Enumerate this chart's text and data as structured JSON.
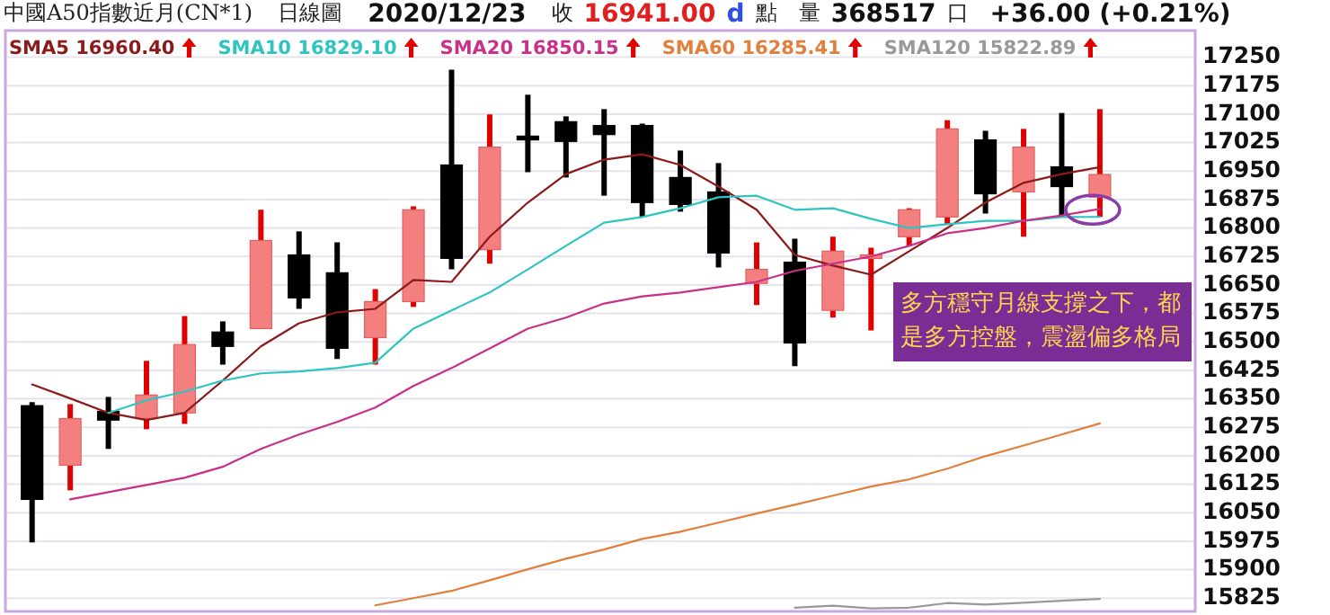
{
  "chart_data": {
    "type": "candlestick",
    "title": "中國A50指數近月(CN*1)",
    "subtitle": "日線圖",
    "annotations": [
      "2020/12/23",
      "收",
      "16941.00",
      "d",
      "點",
      "量",
      "368517",
      "口",
      "+36.00 (+0.21%)",
      "多方穩守月線支撐之下，都是多方控盤，震盪偏多格局"
    ],
    "categories": [
      null,
      null,
      null,
      null,
      null,
      null,
      null,
      null,
      null,
      null,
      null,
      null,
      null,
      null,
      null,
      null,
      null,
      null,
      null,
      null,
      null,
      null,
      null,
      null,
      null,
      null,
      null,
      null,
      null
    ],
    "ohlc": [
      [
        16332,
        16341,
        15972,
        16085
      ],
      [
        16175,
        16336,
        16109,
        16298
      ],
      [
        16317,
        16355,
        16218,
        16294
      ],
      [
        16298,
        16450,
        16270,
        16360
      ],
      [
        16313,
        16568,
        16284,
        16493
      ],
      [
        16526,
        16554,
        16440,
        16488
      ],
      [
        16535,
        16848,
        16535,
        16767
      ],
      [
        16729,
        16791,
        16587,
        16616
      ],
      [
        16682,
        16762,
        16455,
        16483
      ],
      [
        16511,
        16639,
        16440,
        16606
      ],
      [
        16606,
        16857,
        16592,
        16848
      ],
      [
        16966,
        17217,
        16691,
        16720
      ],
      [
        16743,
        17099,
        16706,
        17013
      ],
      [
        17042,
        17151,
        16947,
        17032
      ],
      [
        17080,
        17094,
        16933,
        17028
      ],
      [
        17070,
        17113,
        16885,
        17046
      ],
      [
        17070,
        17075,
        16829,
        16867
      ],
      [
        16933,
        17004,
        16843,
        16862
      ],
      [
        16895,
        16971,
        16696,
        16734
      ],
      [
        16654,
        16762,
        16597,
        16691
      ],
      [
        16710,
        16772,
        16436,
        16497
      ],
      [
        16583,
        16777,
        16564,
        16739
      ],
      [
        16720,
        16748,
        16530,
        16729
      ],
      [
        16777,
        16852,
        16753,
        16848
      ],
      [
        16829,
        17084,
        16810,
        17061
      ],
      [
        17032,
        17056,
        16838,
        16890
      ],
      [
        16895,
        17061,
        16777,
        17013
      ],
      [
        16961,
        17103,
        16829,
        16909
      ],
      [
        16881,
        17113,
        16829,
        16941
      ]
    ],
    "series": [
      {
        "name": "SMA5 16960.40",
        "type": "line",
        "color": "#8b1a1a",
        "values": [
          16388,
          16351,
          16313,
          16294,
          16313,
          16398,
          16488,
          16549,
          16578,
          16587,
          16663,
          16658,
          16777,
          16867,
          16942,
          16980,
          16994,
          16966,
          16909,
          16848,
          16729,
          16701,
          16677,
          16739,
          16800,
          16867,
          16919,
          16942,
          16960.4
        ]
      },
      {
        "name": "SMA10 16829.10",
        "type": "line",
        "color": "#2ec4c0",
        "values": [
          null,
          null,
          16313,
          16346,
          16369,
          16398,
          16417,
          16422,
          16431,
          16445,
          16535,
          16583,
          16630,
          16691,
          16753,
          16814,
          16829,
          16852,
          16881,
          16885,
          16848,
          16852,
          16824,
          16800,
          16810,
          16819,
          16819,
          16829,
          16829.1
        ]
      },
      {
        "name": "SMA20 16850.15",
        "type": "line",
        "color": "#c8308a",
        "values": [
          null,
          16085,
          16104,
          16123,
          16142,
          16171,
          16218,
          16256,
          16289,
          16327,
          16384,
          16431,
          16483,
          16535,
          16564,
          16601,
          16620,
          16630,
          16644,
          16658,
          16687,
          16706,
          16725,
          16753,
          16786,
          16800,
          16819,
          16833,
          16850.15
        ]
      },
      {
        "name": "SMA60 16285.41",
        "type": "line",
        "color": "#e0803c",
        "values": [
          null,
          null,
          null,
          null,
          null,
          null,
          null,
          null,
          null,
          15806,
          15825,
          15844,
          15872,
          15901,
          15929,
          15953,
          15981,
          16000,
          16024,
          16048,
          16071,
          16095,
          16119,
          16138,
          16166,
          16199,
          16227,
          16256,
          16285.41
        ]
      },
      {
        "name": "SMA120 15822.89",
        "type": "line",
        "color": "#999999",
        "values": [
          null,
          null,
          null,
          null,
          null,
          null,
          null,
          null,
          null,
          null,
          null,
          null,
          null,
          null,
          null,
          null,
          null,
          null,
          null,
          null,
          15800,
          15805,
          15798,
          15800,
          15812,
          15808,
          15813,
          15818,
          15822.89
        ]
      }
    ],
    "ylim": [
      15790,
      17320
    ],
    "yticks": [
      15825,
      15900,
      15975,
      16050,
      16125,
      16200,
      16275,
      16350,
      16425,
      16500,
      16575,
      16650,
      16725,
      16800,
      16875,
      16950,
      17025,
      17100,
      17175,
      17250
    ],
    "grid": "y",
    "legend": "top"
  }
}
